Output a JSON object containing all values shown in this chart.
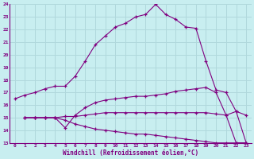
{
  "xlabel": "Windchill (Refroidissement éolien,°C)",
  "bg_color": "#c8eef0",
  "line_color": "#800080",
  "grid_color": "#b0d8dc",
  "xlim": [
    -0.5,
    23.5
  ],
  "ylim": [
    13,
    24
  ],
  "xticks": [
    0,
    1,
    2,
    3,
    4,
    5,
    6,
    7,
    8,
    9,
    10,
    11,
    12,
    13,
    14,
    15,
    16,
    17,
    18,
    19,
    20,
    21,
    22,
    23
  ],
  "yticks": [
    13,
    14,
    15,
    16,
    17,
    18,
    19,
    20,
    21,
    22,
    23,
    24
  ],
  "line1_x": [
    0,
    1,
    2,
    3,
    4,
    5,
    6,
    7,
    8,
    9,
    10,
    11,
    12,
    13,
    14,
    15,
    16,
    17,
    18,
    19,
    20,
    21,
    22,
    23
  ],
  "line1_y": [
    16.5,
    16.8,
    17.0,
    17.3,
    17.5,
    17.5,
    18.3,
    19.5,
    20.8,
    21.5,
    22.2,
    22.5,
    23.0,
    23.2,
    24.0,
    23.2,
    22.8,
    22.2,
    22.1,
    19.5,
    17.2,
    17.0,
    15.5,
    15.2
  ],
  "line2_x": [
    1,
    2,
    3,
    4,
    5,
    6,
    7,
    8,
    9,
    10,
    11,
    12,
    13,
    14,
    15,
    16,
    17,
    18,
    19,
    20,
    21,
    22,
    23
  ],
  "line2_y": [
    15.0,
    15.0,
    15.0,
    15.0,
    14.2,
    15.2,
    15.8,
    16.2,
    16.4,
    16.5,
    16.6,
    16.7,
    16.7,
    16.8,
    16.9,
    17.1,
    17.2,
    17.3,
    17.4,
    17.0,
    15.2,
    15.5,
    13.0
  ],
  "line3_x": [
    1,
    2,
    3,
    4,
    5,
    6,
    7,
    8,
    9,
    10,
    11,
    12,
    13,
    14,
    15,
    16,
    17,
    18,
    19,
    20,
    21,
    22,
    23
  ],
  "line3_y": [
    15.0,
    15.0,
    15.0,
    15.0,
    15.1,
    15.1,
    15.2,
    15.3,
    15.4,
    15.4,
    15.4,
    15.4,
    15.4,
    15.4,
    15.4,
    15.4,
    15.4,
    15.4,
    15.4,
    15.3,
    15.2,
    13.0,
    13.0
  ],
  "line4_x": [
    1,
    2,
    3,
    4,
    5,
    6,
    7,
    8,
    9,
    10,
    11,
    12,
    13,
    14,
    15,
    16,
    17,
    18,
    19,
    20,
    21,
    22,
    23
  ],
  "line4_y": [
    15.0,
    15.0,
    15.0,
    15.0,
    14.8,
    14.5,
    14.3,
    14.1,
    14.0,
    13.9,
    13.8,
    13.7,
    13.7,
    13.6,
    13.5,
    13.4,
    13.3,
    13.2,
    13.1,
    13.0,
    13.0,
    13.0,
    13.0
  ]
}
